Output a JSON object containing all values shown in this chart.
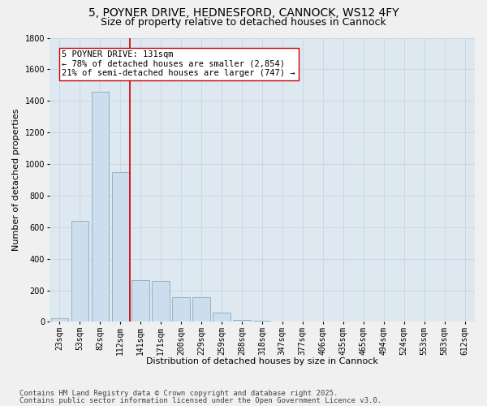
{
  "title_line1": "5, POYNER DRIVE, HEDNESFORD, CANNOCK, WS12 4FY",
  "title_line2": "Size of property relative to detached houses in Cannock",
  "xlabel": "Distribution of detached houses by size in Cannock",
  "ylabel": "Number of detached properties",
  "categories": [
    "23sqm",
    "53sqm",
    "82sqm",
    "112sqm",
    "141sqm",
    "171sqm",
    "200sqm",
    "229sqm",
    "259sqm",
    "288sqm",
    "318sqm",
    "347sqm",
    "377sqm",
    "406sqm",
    "435sqm",
    "465sqm",
    "494sqm",
    "524sqm",
    "553sqm",
    "583sqm",
    "612sqm"
  ],
  "values": [
    25,
    640,
    1460,
    950,
    265,
    260,
    155,
    155,
    60,
    15,
    5,
    0,
    0,
    0,
    0,
    0,
    0,
    0,
    0,
    0,
    0
  ],
  "bar_color": "#ccdded",
  "bar_edge_color": "#8aaabb",
  "vline_color": "#cc0000",
  "annotation_text": "5 POYNER DRIVE: 131sqm\n← 78% of detached houses are smaller (2,854)\n21% of semi-detached houses are larger (747) →",
  "annotation_box_color": "#ffffff",
  "annotation_box_edge": "#cc0000",
  "ylim": [
    0,
    1800
  ],
  "yticks": [
    0,
    200,
    400,
    600,
    800,
    1000,
    1200,
    1400,
    1600,
    1800
  ],
  "grid_color": "#c8d4e0",
  "bg_color": "#dde8f0",
  "footer_line1": "Contains HM Land Registry data © Crown copyright and database right 2025.",
  "footer_line2": "Contains public sector information licensed under the Open Government Licence v3.0.",
  "title_fontsize": 10,
  "subtitle_fontsize": 9,
  "axis_label_fontsize": 8,
  "tick_fontsize": 7,
  "annotation_fontsize": 7.5,
  "footer_fontsize": 6.5
}
